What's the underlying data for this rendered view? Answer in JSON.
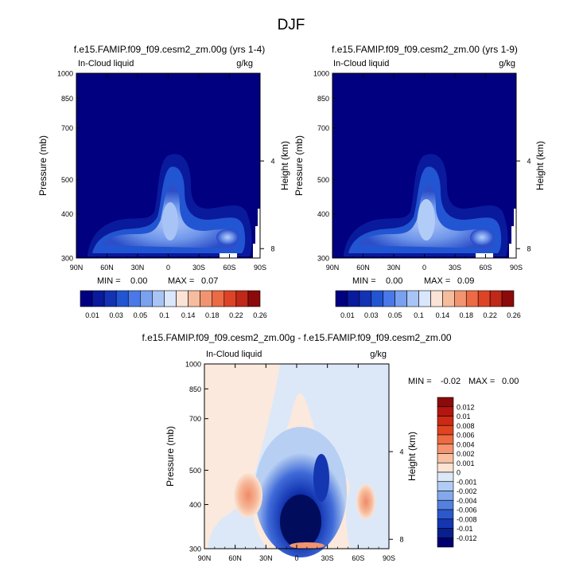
{
  "page_title": "DJF",
  "colors": {
    "frame": "#000000",
    "background": "#ffffff"
  },
  "chart_data": [
    {
      "type": "heatmap",
      "title": "f.e15.FAMIP.f09_f09.cesm2_zm.00g (yrs 1-4)",
      "subtitle_left": "In-Cloud liquid",
      "subtitle_right": "g/kg",
      "xlabel": "",
      "ylabel": "Pressure (mb)",
      "ylabel_right": "Height (km)",
      "x_ticks": [
        "90N",
        "60N",
        "30N",
        "0",
        "30S",
        "60S",
        "90S"
      ],
      "y_ticks": [
        "300",
        "400",
        "500",
        "700",
        "850",
        "1000"
      ],
      "y_ticks_right": [
        "8",
        "4"
      ],
      "stats": {
        "min_label": "MIN =",
        "min": "0.00",
        "max_label": "MAX =",
        "max": "0.07"
      },
      "levels": [
        "0.01",
        "0.03",
        "0.05",
        "0.1",
        "0.14",
        "0.18",
        "0.22",
        "0.26"
      ],
      "ylim": [
        1000,
        300
      ]
    },
    {
      "type": "heatmap",
      "title": "f.e15.FAMIP.f09_f09.cesm2_zm.00 (yrs 1-9)",
      "subtitle_left": "In-Cloud liquid",
      "subtitle_right": "g/kg",
      "xlabel": "",
      "ylabel": "Pressure (mb)",
      "ylabel_right": "Height (km)",
      "x_ticks": [
        "90N",
        "60N",
        "30N",
        "0",
        "30S",
        "60S",
        "90S"
      ],
      "y_ticks": [
        "300",
        "400",
        "500",
        "700",
        "850",
        "1000"
      ],
      "y_ticks_right": [
        "8",
        "4"
      ],
      "stats": {
        "min_label": "MIN =",
        "min": "0.00",
        "max_label": "MAX =",
        "max": "0.09"
      },
      "levels": [
        "0.01",
        "0.03",
        "0.05",
        "0.1",
        "0.14",
        "0.18",
        "0.22",
        "0.26"
      ],
      "ylim": [
        1000,
        300
      ]
    },
    {
      "type": "heatmap",
      "title": "f.e15.FAMIP.f09_f09.cesm2_zm.00g - f.e15.FAMIP.f09_f09.cesm2_zm.00",
      "subtitle_left": "In-Cloud liquid",
      "subtitle_right": "g/kg",
      "xlabel": "",
      "ylabel": "Pressure (mb)",
      "ylabel_right": "Height (km)",
      "x_ticks": [
        "90N",
        "60N",
        "30N",
        "0",
        "30S",
        "60S",
        "90S"
      ],
      "y_ticks": [
        "300",
        "400",
        "500",
        "700",
        "850",
        "1000"
      ],
      "y_ticks_right": [
        "8",
        "4"
      ],
      "stats": {
        "min_label": "MIN =",
        "min": "-0.02",
        "max_label": "MAX =",
        "max": "0.00"
      },
      "levels": [
        "0.012",
        "0.01",
        "0.008",
        "0.006",
        "0.004",
        "0.002",
        "0.001",
        "0",
        "-0.001",
        "-0.002",
        "-0.004",
        "-0.006",
        "-0.008",
        "-0.01",
        "-0.012"
      ],
      "ylim": [
        1000,
        300
      ]
    }
  ],
  "abs_colorbar_colors": [
    "#000080",
    "#0a1a9c",
    "#1432b4",
    "#2255d2",
    "#4a78e8",
    "#7aa0f0",
    "#a8c4f6",
    "#d9e6fb",
    "#fbe4d6",
    "#f6bc9e",
    "#f29470",
    "#ec6a44",
    "#dd4426",
    "#c02818",
    "#8c0a0a"
  ],
  "diff_colorbar_colors": [
    "#8c0a0a",
    "#b3160e",
    "#cc2a14",
    "#e04420",
    "#ee6a42",
    "#f49470",
    "#f8c0a0",
    "#fbe4d4",
    "#dce8f8",
    "#b0ccf2",
    "#84a8ea",
    "#5480e0",
    "#2c58cc",
    "#1436b0",
    "#08208e",
    "#000070"
  ]
}
